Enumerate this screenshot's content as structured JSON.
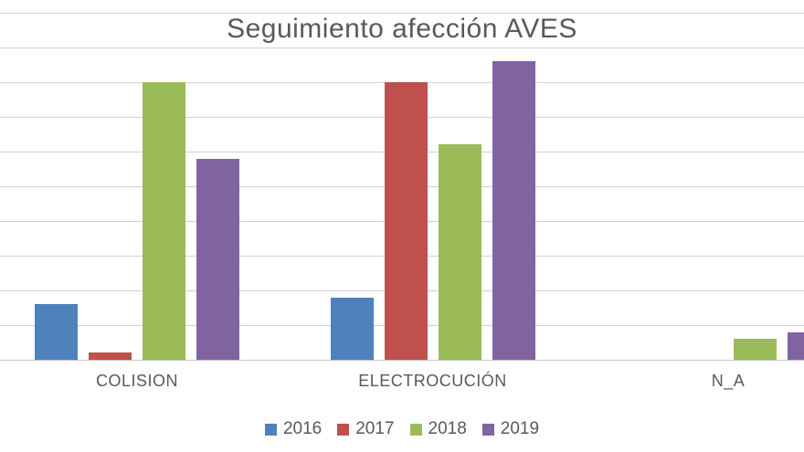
{
  "chart_data": {
    "type": "bar",
    "title": "Seguimiento afección AVES",
    "categories": [
      "COLISION",
      "ELECTROCUCIÓN",
      "N_A"
    ],
    "series": [
      {
        "name": "2016",
        "color": "#4F81BD",
        "values": [
          8,
          9,
          0
        ]
      },
      {
        "name": "2017",
        "color": "#C0504D",
        "values": [
          1,
          40,
          0
        ]
      },
      {
        "name": "2018",
        "color": "#9BBB59",
        "values": [
          40,
          31,
          3
        ]
      },
      {
        "name": "2019",
        "color": "#8064A2",
        "values": [
          29,
          43,
          4
        ]
      }
    ],
    "xlabel": "",
    "ylabel": "",
    "ylim": [
      0,
      50
    ],
    "grid": {
      "horizontal": true,
      "step": 5,
      "color": "#d2d2d2"
    },
    "legend": {
      "position": "bottom",
      "labels": [
        "2016",
        "2017",
        "2018",
        "2019"
      ]
    },
    "axis_tick_labels_visible": false
  },
  "colors": {
    "text": "#595959",
    "background": "#ffffff"
  }
}
